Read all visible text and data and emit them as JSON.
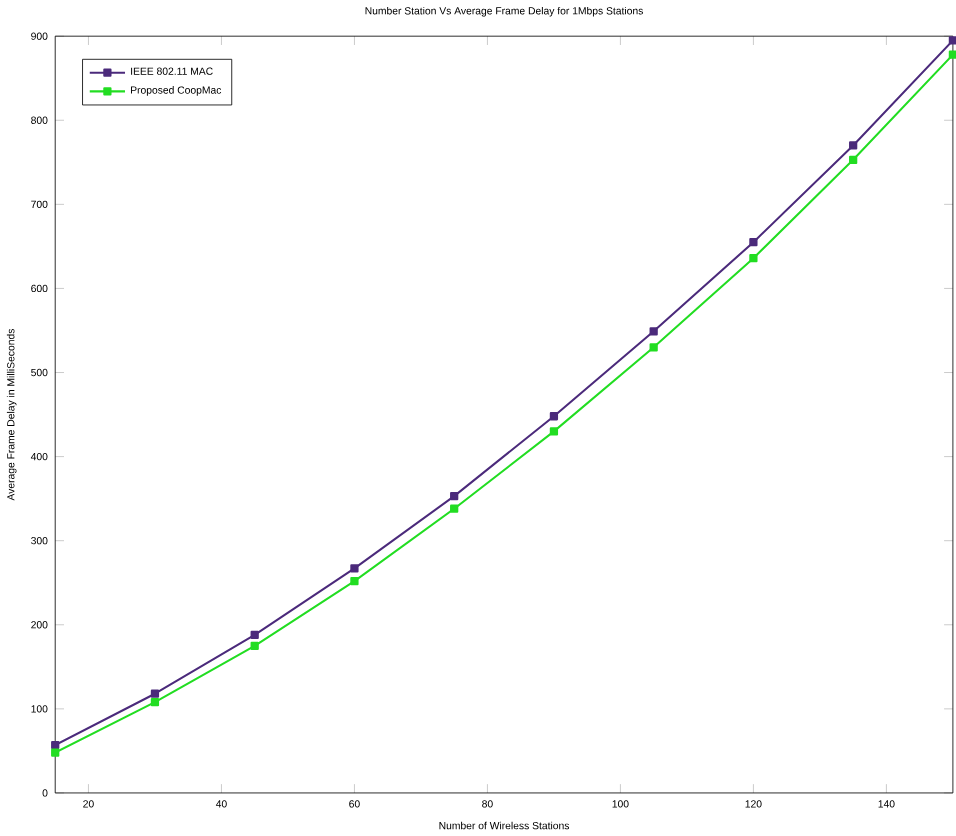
{
  "chart_data": {
    "type": "line",
    "title": "Number Station Vs Average Frame Delay for 1Mbps Stations",
    "xlabel": "Number of Wireless Stations",
    "ylabel": "Average Frame Delay in MilliSeconds",
    "x": [
      15,
      30,
      45,
      60,
      75,
      90,
      105,
      120,
      135,
      150
    ],
    "series": [
      {
        "name": "IEEE 802.11 MAC",
        "color": "#4b2a7b",
        "values": [
          57,
          118,
          188,
          267,
          353,
          448,
          549,
          655,
          770,
          895
        ]
      },
      {
        "name": "Proposed CoopMac",
        "color": "#22dd22",
        "values": [
          48,
          108,
          175,
          252,
          338,
          430,
          530,
          636,
          753,
          878
        ]
      }
    ],
    "xlim": [
      15,
      150
    ],
    "xticks": [
      20,
      40,
      60,
      80,
      100,
      120,
      140
    ],
    "ylim": [
      0,
      900
    ],
    "yticks": [
      0,
      100,
      200,
      300,
      400,
      500,
      600,
      700,
      800,
      900
    ],
    "legend": "top left",
    "marker": "square",
    "line_style": "solid",
    "grid": false
  }
}
